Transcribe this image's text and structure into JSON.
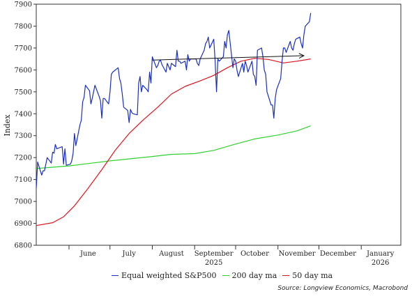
{
  "chart_data": {
    "type": "line",
    "ylabel": "Index",
    "ylim": [
      6800,
      7900
    ],
    "yticks": [
      6800,
      6900,
      7000,
      7100,
      7200,
      7300,
      7400,
      7500,
      7600,
      7700,
      7800,
      7900
    ],
    "xlim": [
      "2025-05-08",
      "2026-01-30"
    ],
    "x_ticks": [
      {
        "date": "2025-05-18",
        "label": "",
        "year": ""
      },
      {
        "date": "2025-06-15",
        "label": "June",
        "year": ""
      },
      {
        "date": "2025-07-15",
        "label": "July",
        "year": ""
      },
      {
        "date": "2025-08-15",
        "label": "August",
        "year": ""
      },
      {
        "date": "2025-09-15",
        "label": "September",
        "year": "2025"
      },
      {
        "date": "2025-10-15",
        "label": "October",
        "year": ""
      },
      {
        "date": "2025-11-15",
        "label": "November",
        "year": ""
      },
      {
        "date": "2025-12-15",
        "label": "December",
        "year": ""
      },
      {
        "date": "2026-01-15",
        "label": "January",
        "year": "2026"
      }
    ],
    "tick_dates": [
      "2025-06-01",
      "2025-07-01",
      "2025-08-01",
      "2025-09-01",
      "2025-10-01",
      "2025-11-01",
      "2025-12-01",
      "2026-01-01"
    ],
    "series": [
      {
        "name": "Equal weighted S&P500",
        "color": "#1a2fc0",
        "points": [
          [
            "2025-05-08",
            7060
          ],
          [
            "2025-05-09",
            7180
          ],
          [
            "2025-05-12",
            7120
          ],
          [
            "2025-05-13",
            7140
          ],
          [
            "2025-05-14",
            7140
          ],
          [
            "2025-05-16",
            7200
          ],
          [
            "2025-05-19",
            7175
          ],
          [
            "2025-05-20",
            7225
          ],
          [
            "2025-05-21",
            7220
          ],
          [
            "2025-05-22",
            7260
          ],
          [
            "2025-05-23",
            7240
          ],
          [
            "2025-05-27",
            7250
          ],
          [
            "2025-05-28",
            7170
          ],
          [
            "2025-05-29",
            7240
          ],
          [
            "2025-05-30",
            7165
          ],
          [
            "2025-06-02",
            7170
          ],
          [
            "2025-06-03",
            7185
          ],
          [
            "2025-06-04",
            7220
          ],
          [
            "2025-06-05",
            7310
          ],
          [
            "2025-06-06",
            7255
          ],
          [
            "2025-06-09",
            7350
          ],
          [
            "2025-06-10",
            7370
          ],
          [
            "2025-06-11",
            7455
          ],
          [
            "2025-06-12",
            7475
          ],
          [
            "2025-06-13",
            7530
          ],
          [
            "2025-06-16",
            7505
          ],
          [
            "2025-06-17",
            7445
          ],
          [
            "2025-06-18",
            7470
          ],
          [
            "2025-06-20",
            7530
          ],
          [
            "2025-06-23",
            7480
          ],
          [
            "2025-06-24",
            7460
          ],
          [
            "2025-06-25",
            7380
          ],
          [
            "2025-06-26",
            7470
          ],
          [
            "2025-06-27",
            7470
          ],
          [
            "2025-06-30",
            7445
          ],
          [
            "2025-07-01",
            7500
          ],
          [
            "2025-07-02",
            7580
          ],
          [
            "2025-07-03",
            7590
          ],
          [
            "2025-07-07",
            7610
          ],
          [
            "2025-07-08",
            7560
          ],
          [
            "2025-07-09",
            7540
          ],
          [
            "2025-07-10",
            7490
          ],
          [
            "2025-07-11",
            7430
          ],
          [
            "2025-07-14",
            7415
          ],
          [
            "2025-07-15",
            7360
          ],
          [
            "2025-07-16",
            7420
          ],
          [
            "2025-07-17",
            7405
          ],
          [
            "2025-07-18",
            7400
          ],
          [
            "2025-07-21",
            7395
          ],
          [
            "2025-07-22",
            7540
          ],
          [
            "2025-07-23",
            7570
          ],
          [
            "2025-07-24",
            7500
          ],
          [
            "2025-07-25",
            7530
          ],
          [
            "2025-07-28",
            7510
          ],
          [
            "2025-07-29",
            7500
          ],
          [
            "2025-07-30",
            7590
          ],
          [
            "2025-07-31",
            7540
          ],
          [
            "2025-08-01",
            7660
          ],
          [
            "2025-08-04",
            7610
          ],
          [
            "2025-08-05",
            7620
          ],
          [
            "2025-08-06",
            7640
          ],
          [
            "2025-08-07",
            7645
          ],
          [
            "2025-08-08",
            7625
          ],
          [
            "2025-08-11",
            7590
          ],
          [
            "2025-08-12",
            7630
          ],
          [
            "2025-08-13",
            7615
          ],
          [
            "2025-08-14",
            7600
          ],
          [
            "2025-08-15",
            7630
          ],
          [
            "2025-08-18",
            7615
          ],
          [
            "2025-08-19",
            7690
          ],
          [
            "2025-08-20",
            7640
          ],
          [
            "2025-08-21",
            7640
          ],
          [
            "2025-08-22",
            7630
          ],
          [
            "2025-08-25",
            7640
          ],
          [
            "2025-08-26",
            7600
          ],
          [
            "2025-08-27",
            7670
          ],
          [
            "2025-08-28",
            7640
          ],
          [
            "2025-08-29",
            7650
          ],
          [
            "2025-09-02",
            7650
          ],
          [
            "2025-09-03",
            7630
          ],
          [
            "2025-09-04",
            7620
          ],
          [
            "2025-09-05",
            7650
          ],
          [
            "2025-09-08",
            7690
          ],
          [
            "2025-09-09",
            7720
          ],
          [
            "2025-09-10",
            7730
          ],
          [
            "2025-09-11",
            7750
          ],
          [
            "2025-09-12",
            7700
          ],
          [
            "2025-09-15",
            7740
          ],
          [
            "2025-09-16",
            7640
          ],
          [
            "2025-09-17",
            7500
          ],
          [
            "2025-09-18",
            7650
          ],
          [
            "2025-09-19",
            7640
          ],
          [
            "2025-09-22",
            7660
          ],
          [
            "2025-09-23",
            7730
          ],
          [
            "2025-09-24",
            7700
          ],
          [
            "2025-09-25",
            7760
          ],
          [
            "2025-09-26",
            7780
          ],
          [
            "2025-09-29",
            7610
          ],
          [
            "2025-09-30",
            7650
          ],
          [
            "2025-10-01",
            7640
          ],
          [
            "2025-10-02",
            7600
          ],
          [
            "2025-10-03",
            7570
          ],
          [
            "2025-10-06",
            7630
          ],
          [
            "2025-10-07",
            7590
          ],
          [
            "2025-10-08",
            7640
          ],
          [
            "2025-10-09",
            7620
          ],
          [
            "2025-10-10",
            7590
          ],
          [
            "2025-10-13",
            7640
          ],
          [
            "2025-10-14",
            7580
          ],
          [
            "2025-10-15",
            7570
          ],
          [
            "2025-10-16",
            7530
          ],
          [
            "2025-10-17",
            7690
          ],
          [
            "2025-10-20",
            7700
          ],
          [
            "2025-10-21",
            7660
          ],
          [
            "2025-10-22",
            7600
          ],
          [
            "2025-10-23",
            7580
          ],
          [
            "2025-10-24",
            7500
          ],
          [
            "2025-10-27",
            7440
          ],
          [
            "2025-10-28",
            7440
          ],
          [
            "2025-10-29",
            7380
          ],
          [
            "2025-10-30",
            7470
          ],
          [
            "2025-10-31",
            7510
          ],
          [
            "2025-11-03",
            7560
          ],
          [
            "2025-11-04",
            7640
          ],
          [
            "2025-11-05",
            7700
          ],
          [
            "2025-11-06",
            7700
          ],
          [
            "2025-11-07",
            7680
          ],
          [
            "2025-11-10",
            7730
          ],
          [
            "2025-11-11",
            7700
          ],
          [
            "2025-11-12",
            7690
          ],
          [
            "2025-11-13",
            7720
          ],
          [
            "2025-11-14",
            7740
          ],
          [
            "2025-11-17",
            7750
          ],
          [
            "2025-11-18",
            7720
          ],
          [
            "2025-11-19",
            7700
          ],
          [
            "2025-11-20",
            7760
          ],
          [
            "2025-11-21",
            7800
          ],
          [
            "2025-11-24",
            7820
          ],
          [
            "2025-11-25",
            7860
          ]
        ]
      },
      {
        "name": "200 day ma",
        "color": "#2fd32f",
        "points": [
          [
            "2025-05-08",
            7150
          ],
          [
            "2025-06-01",
            7162
          ],
          [
            "2025-07-01",
            7185
          ],
          [
            "2025-08-01",
            7205
          ],
          [
            "2025-08-15",
            7215
          ],
          [
            "2025-09-01",
            7218
          ],
          [
            "2025-09-15",
            7233
          ],
          [
            "2025-10-01",
            7262
          ],
          [
            "2025-10-15",
            7285
          ],
          [
            "2025-11-01",
            7303
          ],
          [
            "2025-11-15",
            7322
          ],
          [
            "2025-11-25",
            7345
          ]
        ]
      },
      {
        "name": "50 day ma",
        "color": "#e0141e",
        "points": [
          [
            "2025-05-08",
            6890
          ],
          [
            "2025-05-20",
            6903
          ],
          [
            "2025-05-28",
            6930
          ],
          [
            "2025-06-05",
            6980
          ],
          [
            "2025-06-15",
            7060
          ],
          [
            "2025-06-25",
            7145
          ],
          [
            "2025-07-05",
            7235
          ],
          [
            "2025-07-15",
            7310
          ],
          [
            "2025-07-25",
            7370
          ],
          [
            "2025-08-05",
            7430
          ],
          [
            "2025-08-15",
            7490
          ],
          [
            "2025-08-25",
            7525
          ],
          [
            "2025-09-05",
            7550
          ],
          [
            "2025-09-15",
            7575
          ],
          [
            "2025-09-25",
            7610
          ],
          [
            "2025-10-05",
            7640
          ],
          [
            "2025-10-15",
            7653
          ],
          [
            "2025-10-25",
            7648
          ],
          [
            "2025-11-05",
            7632
          ],
          [
            "2025-11-15",
            7640
          ],
          [
            "2025-11-25",
            7650
          ]
        ]
      }
    ],
    "annotations": [
      {
        "type": "arrow",
        "from": [
          "2025-08-01",
          7645
        ],
        "to": [
          "2025-11-20",
          7665
        ],
        "color": "#111111"
      }
    ]
  },
  "legend": {
    "items": [
      {
        "label": "Equal weighted S&P500",
        "color": "#1a2fc0"
      },
      {
        "label": "200 day ma",
        "color": "#2fd32f"
      },
      {
        "label": "50 day ma",
        "color": "#e0141e"
      }
    ]
  },
  "source": "Source: Longview Economics, Macrobond"
}
